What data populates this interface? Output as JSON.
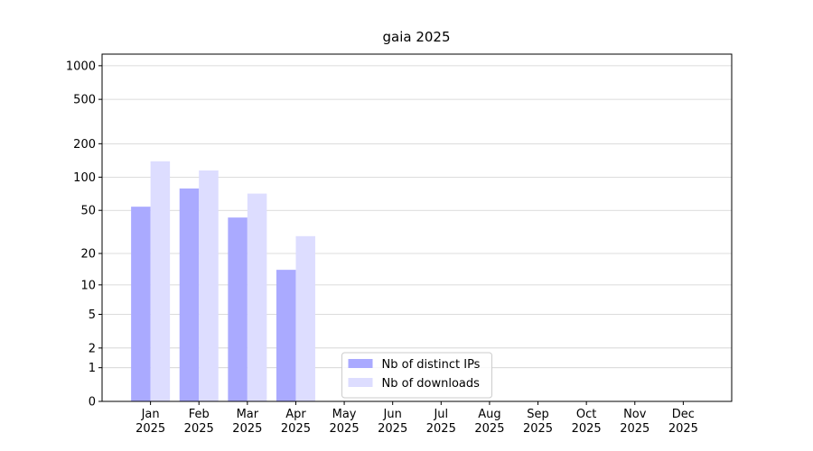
{
  "chart_data": {
    "type": "bar",
    "title": "gaia 2025",
    "categories": [
      "Jan 2025",
      "Feb 2025",
      "Mar 2025",
      "Apr 2025",
      "May 2025",
      "Jun 2025",
      "Jul 2025",
      "Aug 2025",
      "Sep 2025",
      "Oct 2025",
      "Nov 2025",
      "Dec 2025"
    ],
    "series": [
      {
        "name": "Nb of distinct IPs",
        "color": "#aaaaff",
        "values": [
          54,
          79,
          43,
          14,
          0,
          0,
          0,
          0,
          0,
          0,
          0,
          0
        ]
      },
      {
        "name": "Nb of downloads",
        "color": "#ddddff",
        "values": [
          139,
          115,
          71,
          29,
          0,
          0,
          0,
          0,
          0,
          0,
          0,
          0
        ]
      }
    ],
    "yscale": "log1p",
    "ylim": [
      0,
      1270
    ],
    "yticks": [
      0,
      1,
      2,
      5,
      10,
      20,
      50,
      100,
      200,
      500,
      1000
    ],
    "grid": true,
    "legend": "lower center"
  }
}
